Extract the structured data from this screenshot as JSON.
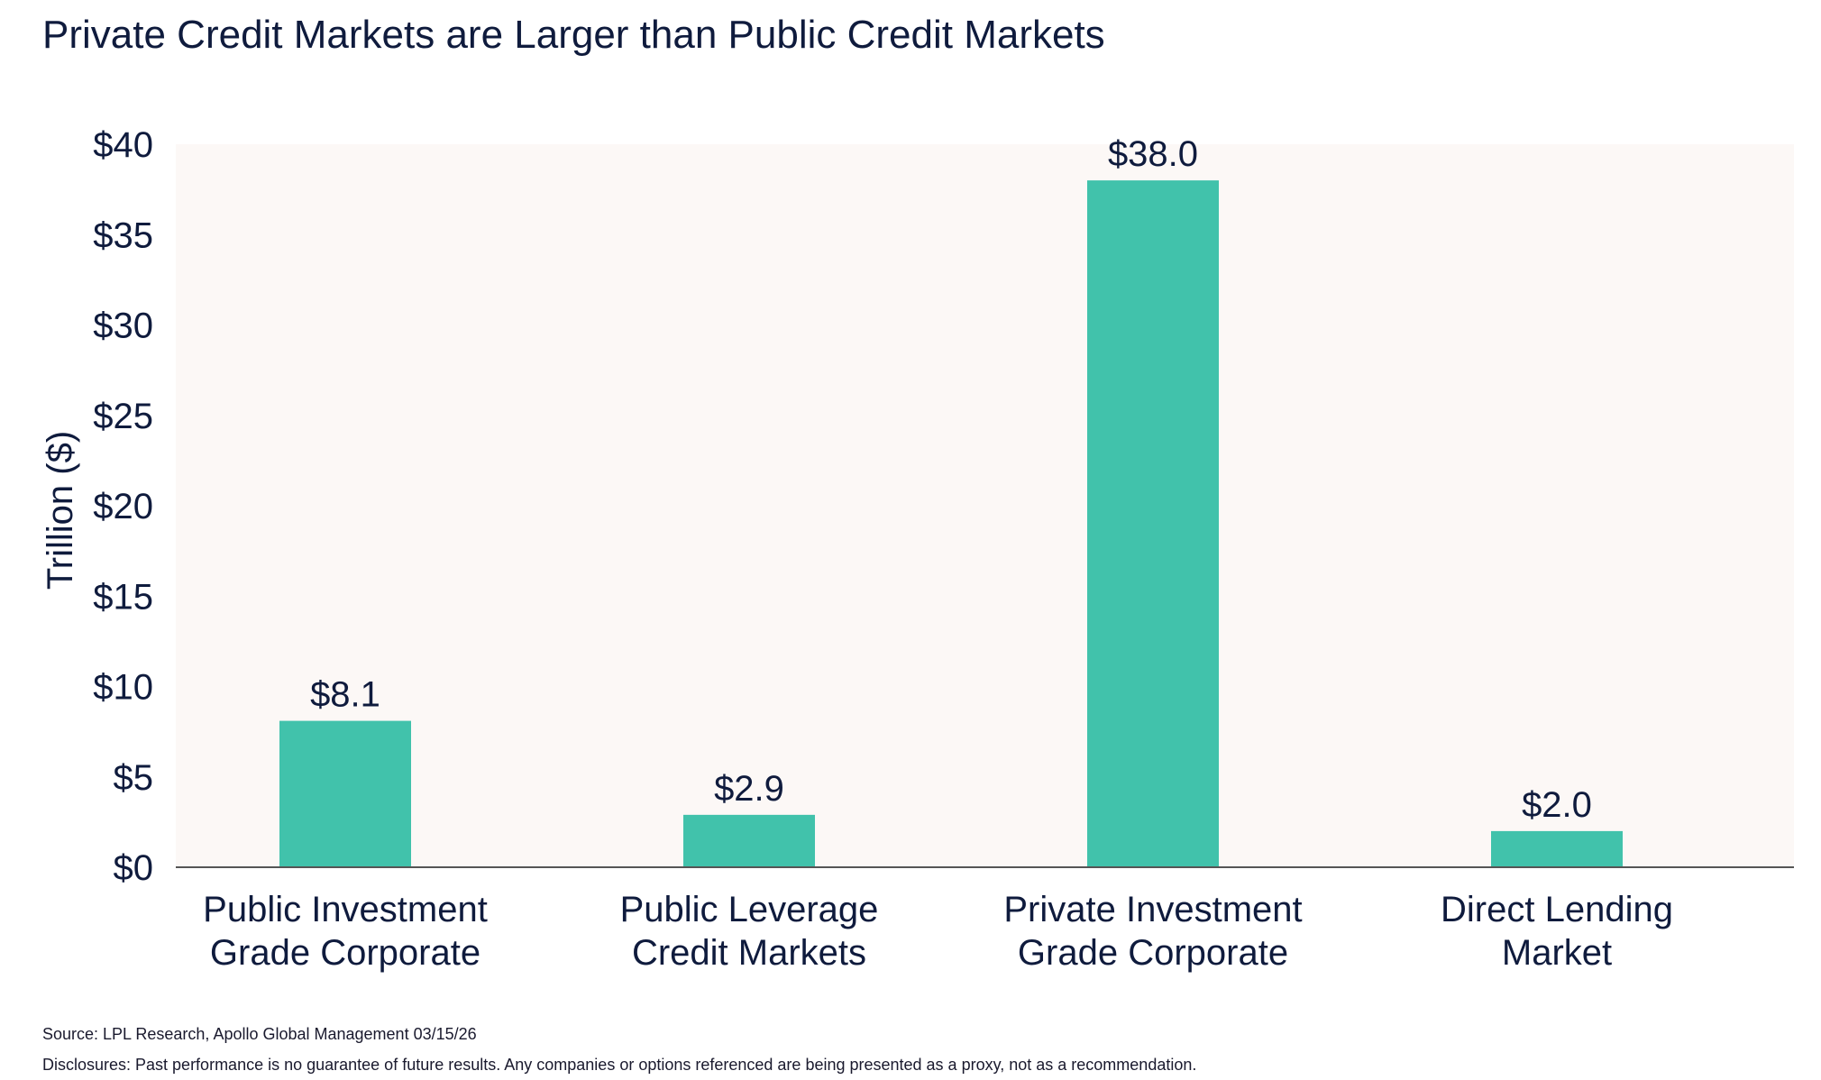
{
  "chart_data": {
    "type": "bar",
    "title": "Private Credit Markets are Larger than Public Credit Markets",
    "ylabel": "Trillion ($)",
    "xlabel": "",
    "ylim": [
      0,
      40
    ],
    "yticks": [
      0,
      5,
      10,
      15,
      20,
      25,
      30,
      35,
      40
    ],
    "ytick_labels": [
      "$0",
      "$5",
      "$10",
      "$15",
      "$20",
      "$25",
      "$30",
      "$35",
      "$40"
    ],
    "categories": [
      [
        "Public Investment",
        "Grade Corporate"
      ],
      [
        "Public Leverage",
        "Credit Markets"
      ],
      [
        "Private Investment",
        "Grade Corporate"
      ],
      [
        "Direct Lending",
        "Market"
      ]
    ],
    "values": [
      8.1,
      2.9,
      38.0,
      2.0
    ],
    "value_labels": [
      "$8.1",
      "$2.9",
      "$38.0",
      "$2.0"
    ],
    "bar_color": "#41c2ab",
    "plot_background": "#fcf8f6",
    "grid": false,
    "legend": "none"
  },
  "footer": {
    "source": "Source: LPL Research, Apollo Global Management 03/15/26",
    "disclosure": "Disclosures: Past performance is no guarantee of future results. Any companies or options referenced are being presented as a proxy, not as a recommendation."
  }
}
